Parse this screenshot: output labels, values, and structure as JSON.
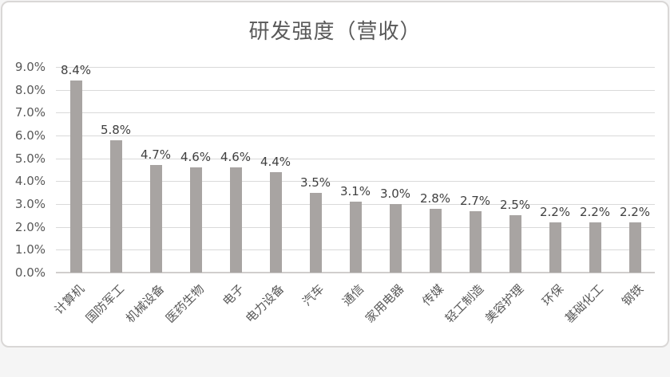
{
  "chart_data": {
    "type": "bar",
    "title": "研发强度（营收）",
    "categories": [
      "计算机",
      "国防军工",
      "机械设备",
      "医药生物",
      "电子",
      "电力设备",
      "汽车",
      "通信",
      "家用电器",
      "传媒",
      "轻工制造",
      "美容护理",
      "环保",
      "基础化工",
      "钢铁"
    ],
    "values": [
      8.4,
      5.8,
      4.7,
      4.6,
      4.6,
      4.4,
      3.5,
      3.1,
      3.0,
      2.8,
      2.7,
      2.5,
      2.2,
      2.2,
      2.2
    ],
    "value_labels": [
      "8.4%",
      "5.8%",
      "4.7%",
      "4.6%",
      "4.6%",
      "4.4%",
      "3.5%",
      "3.1%",
      "3.0%",
      "2.8%",
      "2.7%",
      "2.5%",
      "2.2%",
      "2.2%",
      "2.2%"
    ],
    "y_tick_labels": [
      "0.0%",
      "1.0%",
      "2.0%",
      "3.0%",
      "4.0%",
      "5.0%",
      "6.0%",
      "7.0%",
      "8.0%",
      "9.0%"
    ],
    "ylim": [
      0,
      9
    ],
    "xlabel": "",
    "ylabel": "",
    "grid": true,
    "legend": false,
    "colors": {
      "bar": "#a8a4a2",
      "gridline": "#d9d9d9",
      "axis_line": "#d0cecd",
      "title_text": "#595959",
      "tick_text": "#595959",
      "value_label_text": "#404040",
      "frame_border": "#d9d7d6",
      "background": "#ffffff"
    }
  }
}
